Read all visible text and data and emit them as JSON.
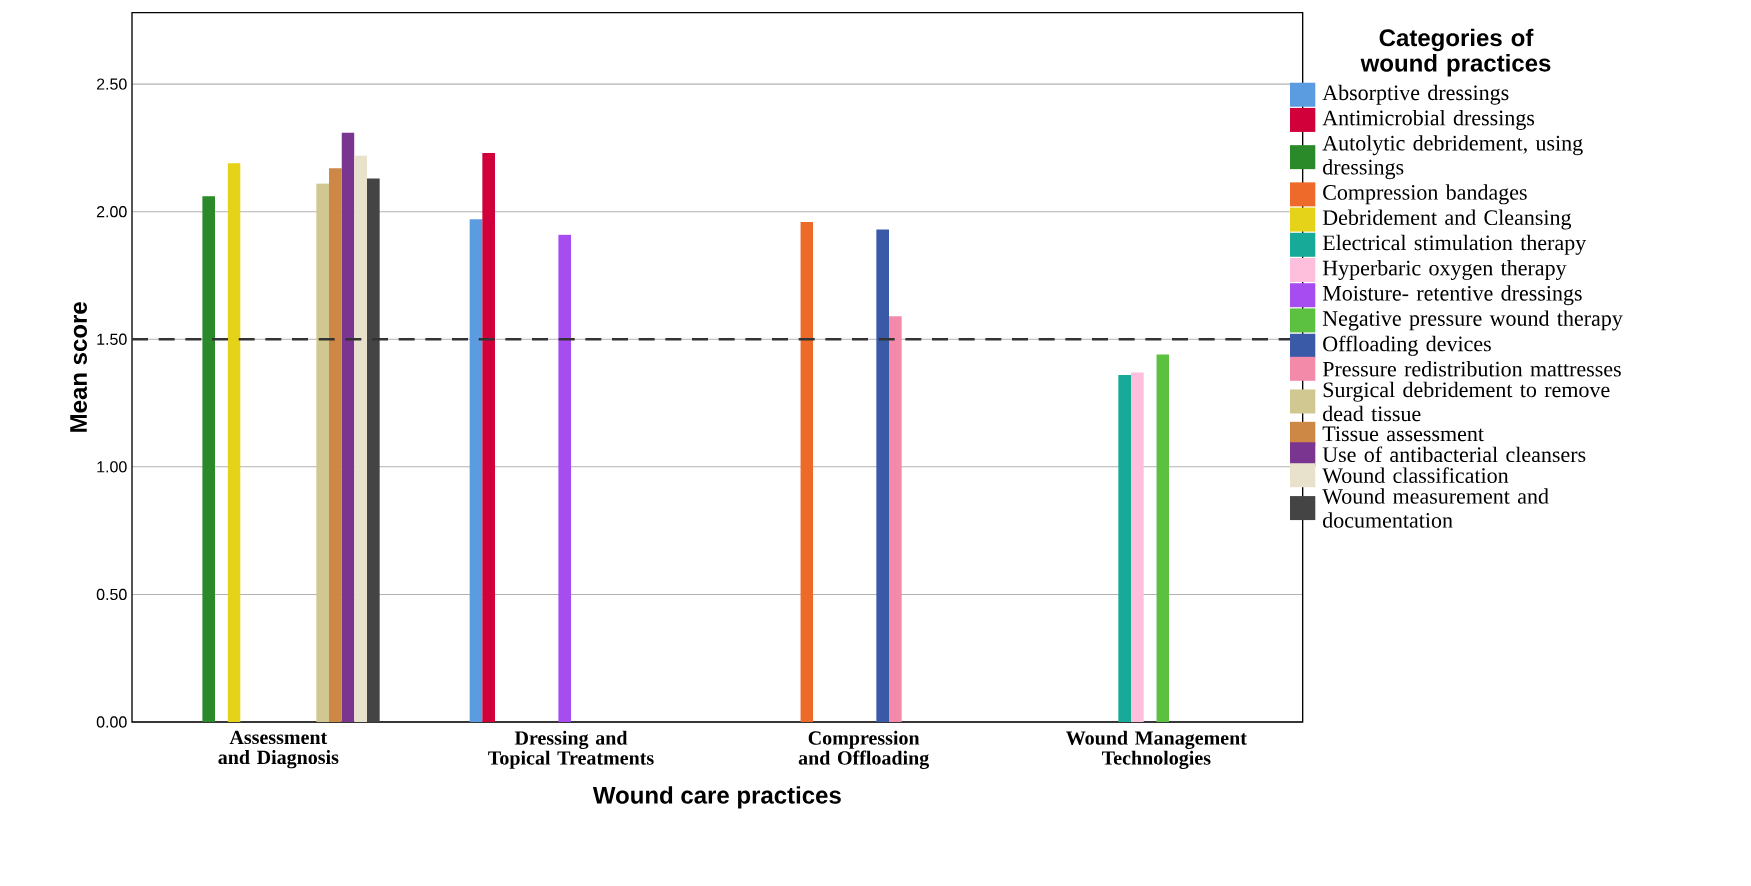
{
  "chart_data": {
    "type": "bar",
    "xlabel": "Wound care practices",
    "ylabel": "Mean score",
    "legend_title": "Categories of wound practices",
    "categories": [
      "Assessment and Diagnosis",
      "Dressing and Topical Treatments",
      "Compression and Offloading",
      "Wound Management Technologies"
    ],
    "series": [
      {
        "name": "Absorptive dressings",
        "color": "#5b9be0",
        "values": [
          null,
          1.97,
          null,
          null
        ]
      },
      {
        "name": "Antimicrobial dressings",
        "color": "#d2003a",
        "values": [
          null,
          2.23,
          null,
          null
        ]
      },
      {
        "name": "Autolytic debridement, using dressings",
        "color": "#2a8a2a",
        "values": [
          2.06,
          null,
          null,
          null
        ]
      },
      {
        "name": "Compression bandages",
        "color": "#ee6a2a",
        "values": [
          null,
          null,
          1.96,
          null
        ]
      },
      {
        "name": "Debridement and Cleansing",
        "color": "#e5d31a",
        "values": [
          2.19,
          null,
          null,
          null
        ]
      },
      {
        "name": "Electrical stimulation therapy",
        "color": "#17aa99",
        "values": [
          null,
          null,
          null,
          1.36
        ]
      },
      {
        "name": "Hyperbaric oxygen therapy",
        "color": "#fdbfdc",
        "values": [
          null,
          null,
          null,
          1.37
        ]
      },
      {
        "name": "Moisture- retentive dressings",
        "color": "#a64cf0",
        "values": [
          null,
          1.91,
          null,
          null
        ]
      },
      {
        "name": "Negative pressure wound therapy",
        "color": "#5cc040",
        "values": [
          null,
          null,
          null,
          1.44
        ]
      },
      {
        "name": "Offloading devices",
        "color": "#3a5aa8",
        "values": [
          null,
          null,
          1.93,
          null
        ]
      },
      {
        "name": "Pressure redistribution mattresses",
        "color": "#f48aaa",
        "values": [
          null,
          null,
          1.59,
          null
        ]
      },
      {
        "name": "Surgical debridement to remove dead  tissue",
        "color": "#d0c890",
        "values": [
          2.11,
          null,
          null,
          null
        ]
      },
      {
        "name": "Tissue assessment",
        "color": "#cc8844",
        "values": [
          2.17,
          null,
          null,
          null
        ]
      },
      {
        "name": "Use of antibacterial cleansers",
        "color": "#7a3590",
        "values": [
          2.31,
          null,
          null,
          null
        ]
      },
      {
        "name": "Wound classification",
        "color": "#e8e2cc",
        "values": [
          2.22,
          null,
          null,
          null
        ]
      },
      {
        "name": "Wound measurement and documentation",
        "color": "#444444",
        "values": [
          2.13,
          null,
          null,
          null
        ]
      }
    ],
    "ylim": [
      0,
      2.78
    ],
    "yticks": [
      {
        "value": 0,
        "label": "0.00"
      },
      {
        "value": 0.5,
        "label": "0.50"
      },
      {
        "value": 1,
        "label": "1.00"
      },
      {
        "value": 1.5,
        "label": "1.50"
      },
      {
        "value": 2,
        "label": "2.00"
      },
      {
        "value": 2.5,
        "label": "2.50"
      }
    ],
    "ref_lines": [
      {
        "axis": "y",
        "value": 1.5,
        "color": "#333333",
        "line_style": "dashed"
      }
    ],
    "grid": "y",
    "legend": "right"
  }
}
